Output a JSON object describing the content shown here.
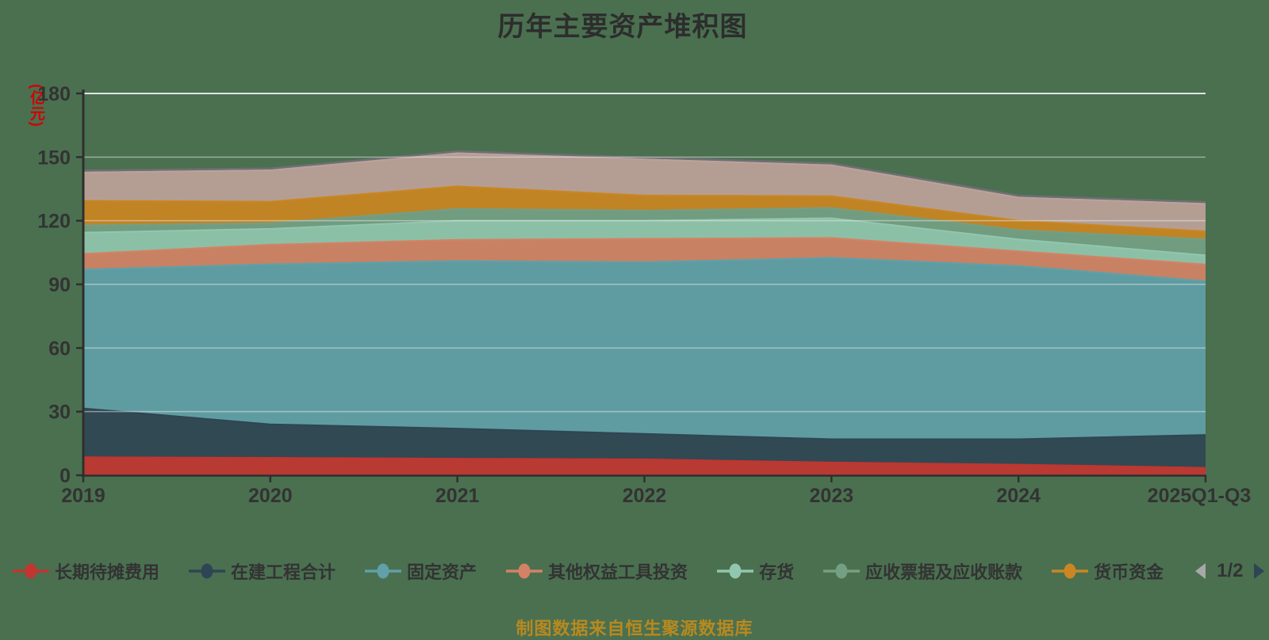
{
  "page": {
    "background_color": "#4a7050"
  },
  "chart": {
    "title": "历年主要资产堆积图",
    "y_axis_unit": "(亿元)",
    "y_axis_unit_color": "#d40000",
    "source_note": "制图数据来自恒生聚源数据库"
  },
  "chart_data": {
    "type": "area",
    "stacked": true,
    "title": "历年主要资产堆积图",
    "x": [
      "2019",
      "2020",
      "2021",
      "2022",
      "2023",
      "2024",
      "2025Q1-Q3"
    ],
    "xlabel": "",
    "ylabel": "(亿元)",
    "ylim": [
      0,
      180
    ],
    "y_ticks": [
      0,
      30,
      60,
      90,
      120,
      150,
      180
    ],
    "grid": true,
    "legend_position": "bottom",
    "series": [
      {
        "name": "长期待摊费用",
        "color": "#c23531",
        "values": [
          8.5,
          8.2,
          7.8,
          7.5,
          6.0,
          5.0,
          3.5
        ]
      },
      {
        "name": "在建工程合计",
        "color": "#2f4554",
        "values": [
          23.0,
          15.8,
          14.2,
          12.0,
          11.0,
          12.0,
          15.5
        ]
      },
      {
        "name": "固定资产",
        "color": "#61a0a8",
        "values": [
          65.5,
          75.5,
          79.0,
          81.0,
          85.5,
          81.7,
          72.5
        ]
      },
      {
        "name": "其他权益工具投资",
        "color": "#d48265",
        "values": [
          7.4,
          9.2,
          10.0,
          11.0,
          9.4,
          6.9,
          7.9
        ]
      },
      {
        "name": "存货",
        "color": "#91c7ae",
        "values": [
          10.0,
          7.5,
          9.0,
          8.5,
          9.3,
          5.6,
          4.3
        ]
      },
      {
        "name": "应收票据及应收账款",
        "color": "#749f83",
        "values": [
          3.4,
          2.6,
          5.6,
          4.8,
          4.8,
          4.4,
          7.5
        ]
      },
      {
        "name": "货币资金",
        "color": "#ca8622",
        "values": [
          11.6,
          10.2,
          10.6,
          7.1,
          5.6,
          4.4,
          3.8
        ]
      },
      {
        "name": "",
        "color": "#bda29a",
        "values": [
          13.4,
          14.8,
          15.7,
          17.1,
          14.6,
          11.0,
          13.0
        ]
      },
      {
        "name": "",
        "color": "#6e7074",
        "values": [
          0.8,
          0.8,
          0.8,
          0.8,
          0.8,
          0.8,
          0.8
        ]
      }
    ]
  },
  "legend": {
    "items": [
      {
        "label": "长期待摊费用",
        "color": "#c23531"
      },
      {
        "label": "在建工程合计",
        "color": "#2f4554"
      },
      {
        "label": "固定资产",
        "color": "#61a0a8"
      },
      {
        "label": "其他权益工具投资",
        "color": "#d48265"
      },
      {
        "label": "存货",
        "color": "#91c7ae"
      },
      {
        "label": "应收票据及应收账款",
        "color": "#749f83"
      },
      {
        "label": "货币资金",
        "color": "#ca8622"
      }
    ],
    "pagination": {
      "label": "1/2",
      "prev_color": "#a8a8a8",
      "next_color": "#2f4554"
    }
  }
}
